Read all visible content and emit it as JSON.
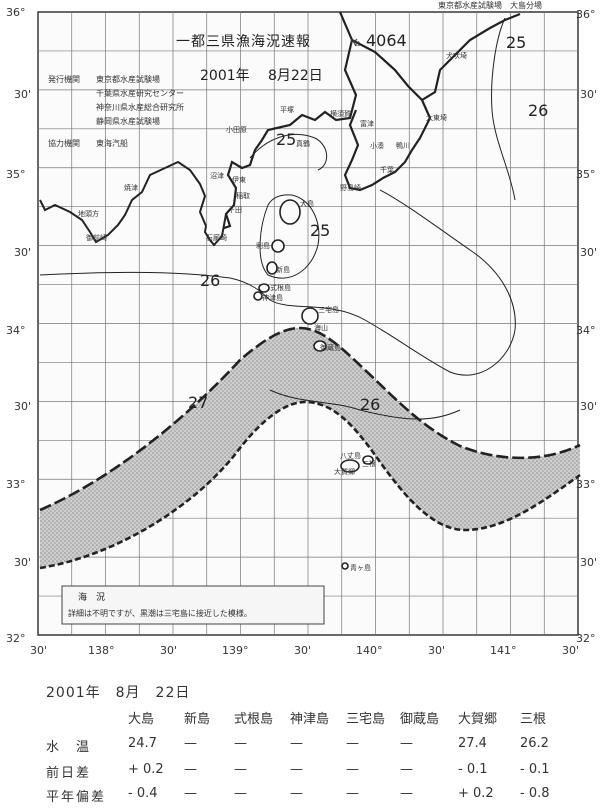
{
  "bulletin": {
    "top_note": "東京都水産試験場　大島分場",
    "title": "一都三県漁海況速報",
    "number_label": "№",
    "number": "4064",
    "date_year": "2001年",
    "date_month_day": "8月22日",
    "issuers_label": "発行機関",
    "issuers": [
      "東京都水産試験場",
      "千葉県水産研究センター",
      "神奈川県水産総合研究所",
      "静岡県水産試験場"
    ],
    "coop_label": "協力機関",
    "coop": "東海汽船"
  },
  "map": {
    "lat_labels": [
      "36°",
      "30'",
      "35°",
      "30'",
      "34°",
      "30'",
      "33°",
      "30'",
      "32°"
    ],
    "lon_labels": [
      "30'",
      "138°",
      "30'",
      "139°",
      "30'",
      "140°",
      "30'",
      "141°",
      "30'"
    ],
    "isotherm_labels": [
      "25",
      "26",
      "25",
      "25",
      "26",
      "27",
      "26"
    ],
    "place_labels": {
      "inubozaki": "犬吠埼",
      "taitozaki": "太東埼",
      "chiba": "千葉",
      "futtsu": "富津",
      "kominato": "小湊",
      "kamogawa": "鴨川",
      "nojimazaki": "野島崎",
      "yokosuka": "横須賀",
      "hiratsuka": "平塚",
      "odawara": "小田原",
      "manazuru": "真鶴",
      "ito": "伊東",
      "inatori": "稲取",
      "shimoda": "下田",
      "irozaki": "石廊崎",
      "numazu": "沼津",
      "yaizu": "焼津",
      "omaezaki": "御前崎",
      "chikyu": "地頭方",
      "oshima": "大島",
      "toshima": "利島",
      "niijima": "新島",
      "shikinejima": "式根島",
      "kozushima": "神津島",
      "miyakejima": "三宅島",
      "mikurajima": "御蔵島",
      "hachijojima": "八丈島",
      "aogashima": "青ヶ島",
      "kaiyama": "海山",
      "sannsonejima": "三根",
      "okago": "大賀郷"
    },
    "legend_title": "海　況",
    "legend_text": "詳細は不明ですが、黒潮は三宅島に接近した模様。"
  },
  "table": {
    "date": "2001年　8月　22日",
    "columns": [
      "大島",
      "新島",
      "式根島",
      "神津島",
      "三宅島",
      "御蔵島",
      "大賀郷",
      "三根"
    ],
    "rows": [
      {
        "label": "水　温",
        "values": [
          "24.7",
          "—",
          "—",
          "—",
          "—",
          "—",
          "27.4",
          "26.2"
        ]
      },
      {
        "label": "前日差",
        "values": [
          "+ 0.2",
          "—",
          "—",
          "—",
          "—",
          "—",
          "- 0.1",
          "- 0.1"
        ]
      },
      {
        "label": "平年偏差",
        "values": [
          "- 0.4",
          "—",
          "—",
          "—",
          "—",
          "—",
          "+ 0.2",
          "- 0.8"
        ]
      }
    ]
  }
}
